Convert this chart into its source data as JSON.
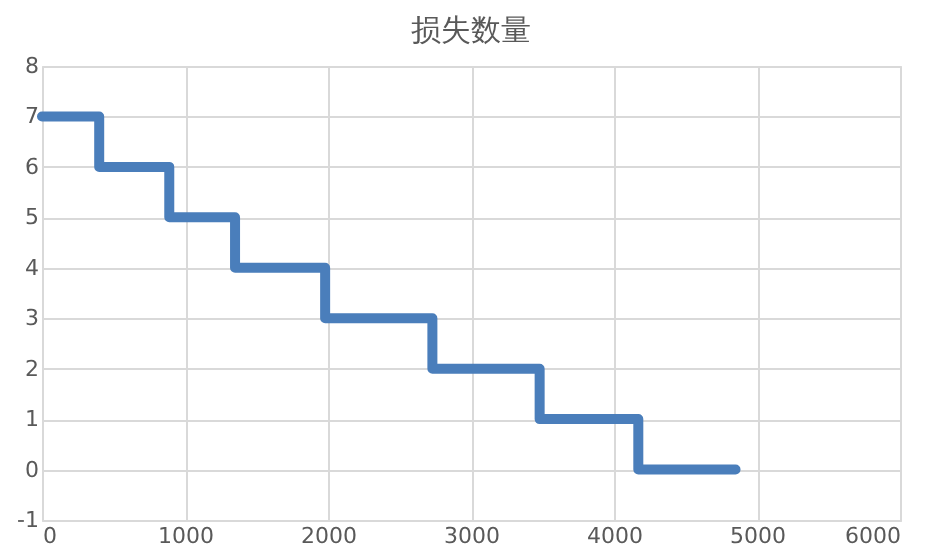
{
  "chart_data": {
    "type": "step",
    "title": "损失数量",
    "x": [
      0,
      400,
      890,
      1350,
      1980,
      2730,
      3480,
      4170,
      4850
    ],
    "series": [
      {
        "color": "#4a7ebb",
        "values": [
          7,
          6,
          5,
          4,
          3,
          2,
          1,
          0,
          0
        ]
      }
    ],
    "xlim": [
      0,
      6000
    ],
    "xticks": [
      0,
      1000,
      2000,
      3000,
      4000,
      5000,
      6000
    ],
    "ylim": [
      -1,
      8
    ],
    "yticks": [
      -1,
      0,
      1,
      2,
      3,
      4,
      5,
      6,
      7,
      8
    ],
    "grid": true,
    "line_style": "solid",
    "marker": "none"
  }
}
